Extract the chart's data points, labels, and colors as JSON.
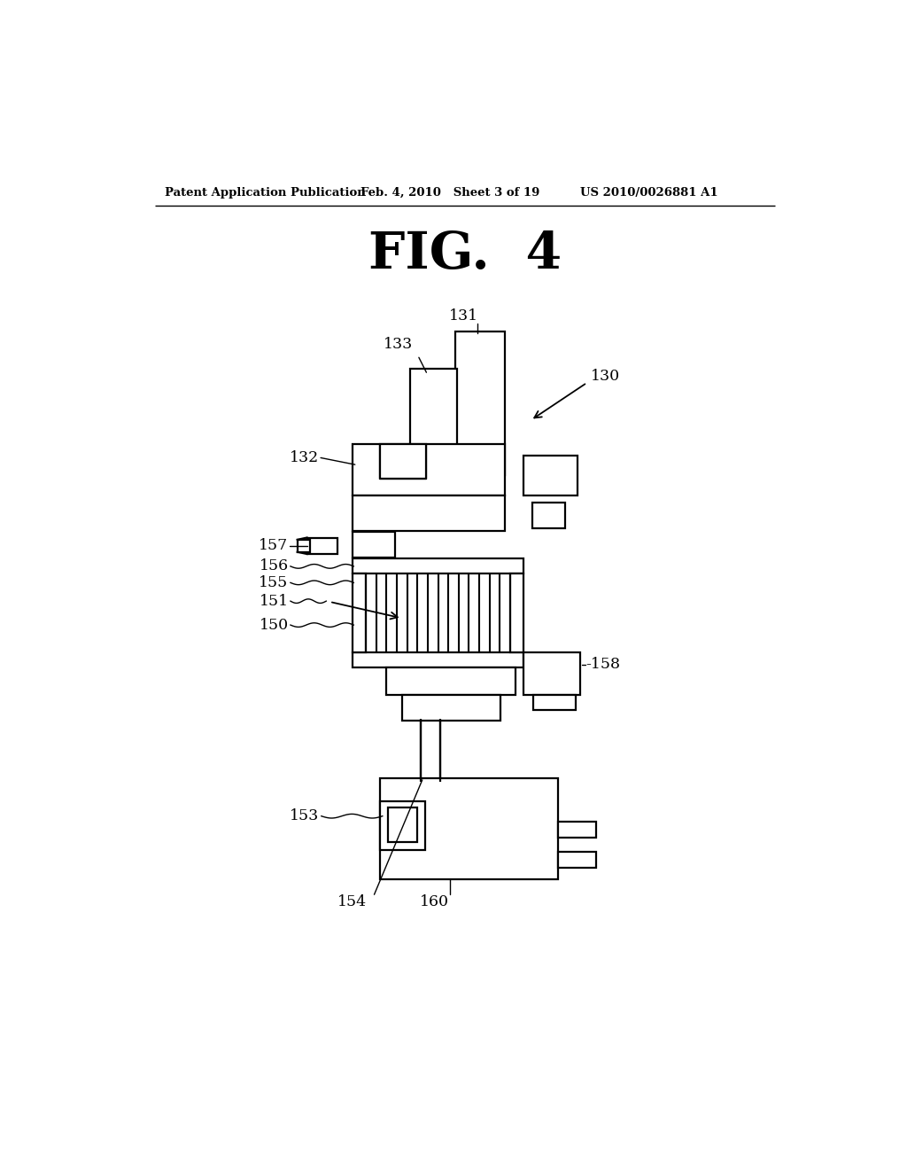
{
  "bg_color": "#ffffff",
  "lw": 1.6,
  "header_left": "Patent Application Publication",
  "header_mid": "Feb. 4, 2010   Sheet 3 of 19",
  "header_right": "US 2010/0026881 A1",
  "fig_title": "FIG.  4"
}
